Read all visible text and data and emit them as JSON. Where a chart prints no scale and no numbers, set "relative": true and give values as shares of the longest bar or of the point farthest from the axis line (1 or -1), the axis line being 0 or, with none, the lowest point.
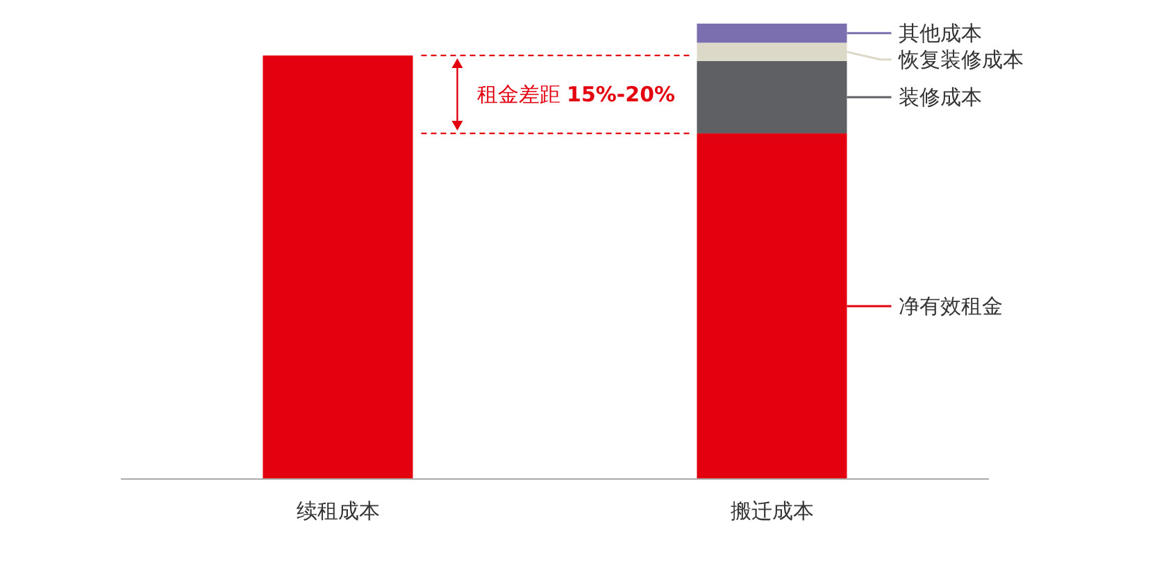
{
  "chart_data": {
    "type": "bar",
    "stacked": true,
    "relative": true,
    "categories": [
      "续租成本",
      "搬迁成本"
    ],
    "series": [
      {
        "name": "净有效租金",
        "color": "#e3000f",
        "values": [
          0.93,
          0.759
        ]
      },
      {
        "name": "装修成本",
        "color": "#5f6063",
        "values": [
          null,
          0.159
        ]
      },
      {
        "name": "恢复装修成本",
        "color": "#ddd9c8",
        "values": [
          null,
          0.04
        ]
      },
      {
        "name": "其他成本",
        "color": "#7b6fb0",
        "values": [
          null,
          0.042
        ]
      }
    ],
    "annotations": [
      "租金差距 **15%-20%**"
    ],
    "legend": "right"
  }
}
